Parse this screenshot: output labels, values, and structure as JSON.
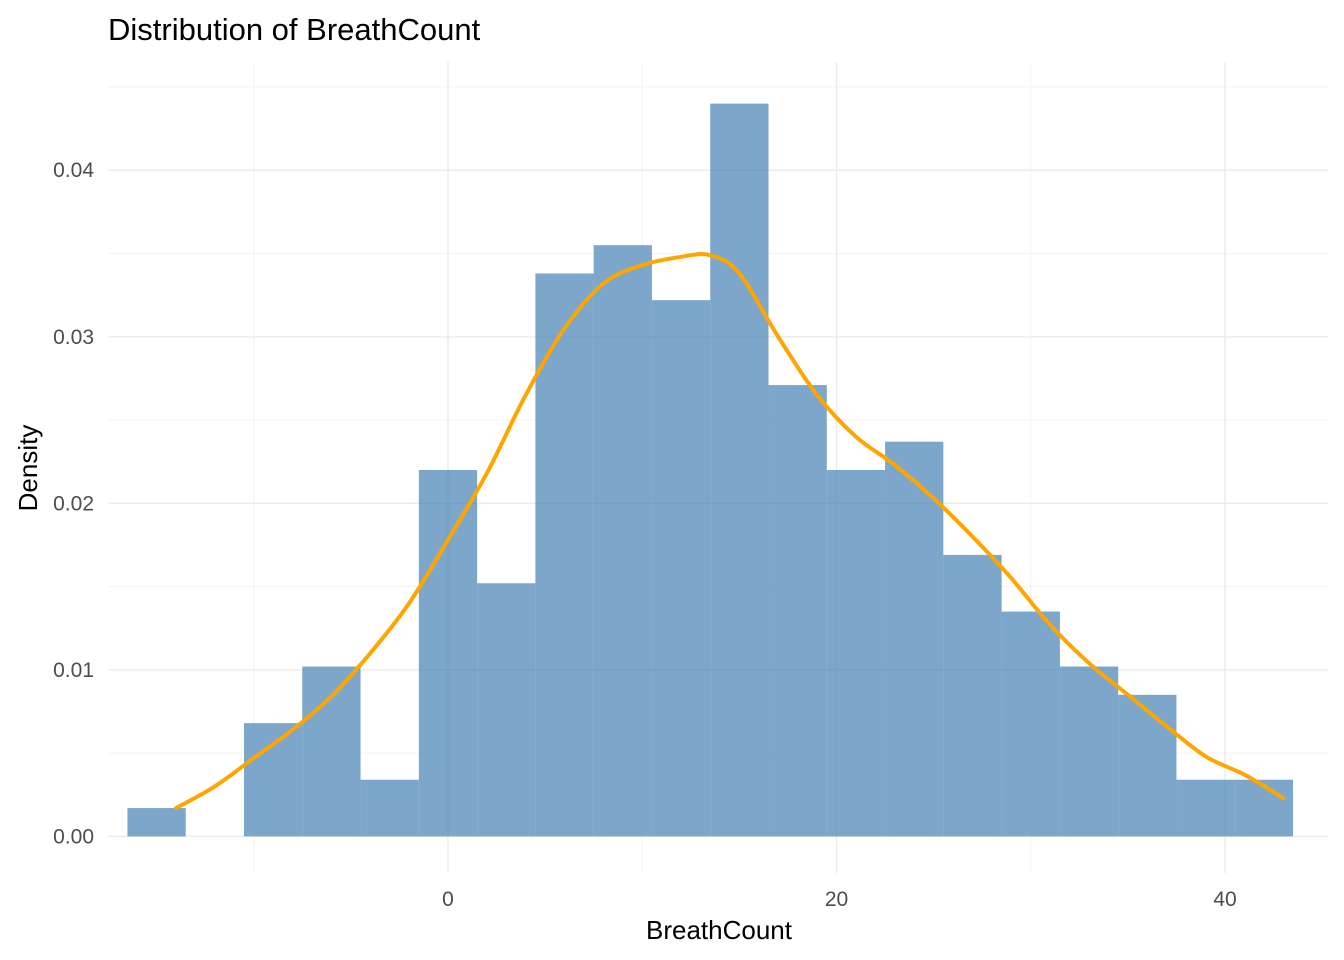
{
  "chart_data": {
    "type": "bar",
    "title": "Distribution of BreathCount",
    "xlabel": "BreathCount",
    "ylabel": "Density",
    "xlim": [
      -17.5,
      45.3
    ],
    "ylim": [
      -0.0022,
      0.0465
    ],
    "x_ticks": [
      0,
      20,
      40
    ],
    "x_tick_labels": [
      "0",
      "20",
      "40"
    ],
    "y_ticks": [
      0,
      0.01,
      0.02,
      0.03,
      0.04
    ],
    "y_tick_labels": [
      "0.00",
      "0.01",
      "0.02",
      "0.03",
      "0.04"
    ],
    "grid": true,
    "histogram": {
      "bin_width": 3,
      "bins": [
        {
          "x0": -16.5,
          "x1": -13.5,
          "density": 0.0017
        },
        {
          "x0": -10.5,
          "x1": -7.5,
          "density": 0.0068
        },
        {
          "x0": -7.5,
          "x1": -4.5,
          "density": 0.0102
        },
        {
          "x0": -4.5,
          "x1": -1.5,
          "density": 0.0034
        },
        {
          "x0": -1.5,
          "x1": 1.5,
          "density": 0.022
        },
        {
          "x0": 1.5,
          "x1": 4.5,
          "density": 0.0152
        },
        {
          "x0": 4.5,
          "x1": 7.5,
          "density": 0.0338
        },
        {
          "x0": 7.5,
          "x1": 10.5,
          "density": 0.0355
        },
        {
          "x0": 10.5,
          "x1": 13.5,
          "density": 0.0322
        },
        {
          "x0": 13.5,
          "x1": 16.5,
          "density": 0.044
        },
        {
          "x0": 16.5,
          "x1": 19.5,
          "density": 0.0271
        },
        {
          "x0": 19.5,
          "x1": 22.5,
          "density": 0.022
        },
        {
          "x0": 22.5,
          "x1": 25.5,
          "density": 0.0237
        },
        {
          "x0": 25.5,
          "x1": 28.5,
          "density": 0.0169
        },
        {
          "x0": 28.5,
          "x1": 31.5,
          "density": 0.0135
        },
        {
          "x0": 31.5,
          "x1": 34.5,
          "density": 0.0102
        },
        {
          "x0": 34.5,
          "x1": 37.5,
          "density": 0.0085
        },
        {
          "x0": 37.5,
          "x1": 40.5,
          "density": 0.0034
        },
        {
          "x0": 40.5,
          "x1": 43.5,
          "density": 0.0034
        }
      ],
      "fill_color": "#4682b4",
      "fill_opacity": 0.7
    },
    "density_curve": {
      "color": "#ffa500",
      "x": [
        -14,
        -12,
        -10,
        -8,
        -6,
        -4,
        -2,
        0,
        2,
        4,
        6,
        8,
        10,
        12,
        13.5,
        15,
        17,
        19,
        21,
        23,
        25,
        27,
        29,
        31,
        33,
        35,
        37,
        39,
        41,
        43
      ],
      "y": [
        0.0017,
        0.003,
        0.0047,
        0.0064,
        0.0084,
        0.011,
        0.014,
        0.0178,
        0.0218,
        0.0265,
        0.0305,
        0.0332,
        0.0343,
        0.0348,
        0.0349,
        0.0338,
        0.03,
        0.0265,
        0.024,
        0.0223,
        0.0203,
        0.018,
        0.0155,
        0.0127,
        0.0104,
        0.0085,
        0.0066,
        0.0048,
        0.0037,
        0.0023
      ]
    }
  }
}
